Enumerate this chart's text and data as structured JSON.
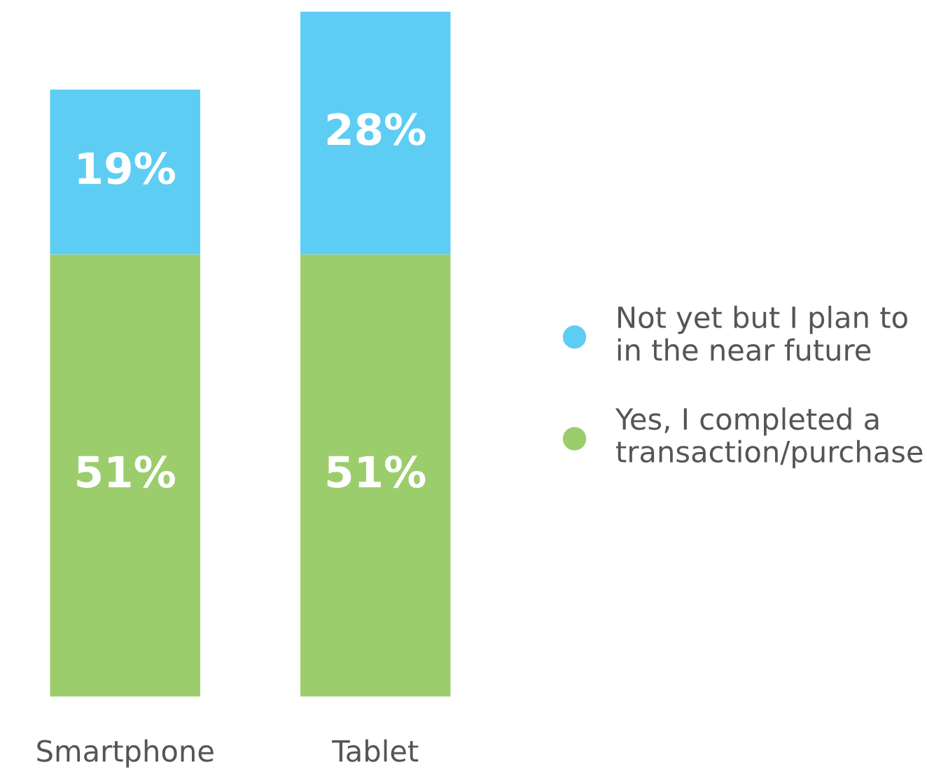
{
  "chart_data": {
    "type": "bar",
    "stacked": true,
    "legend": "right",
    "marker": "circle",
    "categories": [
      "Smartphone",
      "Tablet"
    ],
    "series": [
      {
        "name": "Yes, I completed a\ntransaction/purchase",
        "color": "#9ccd6c",
        "values": [
          51,
          51
        ],
        "value_labels": [
          "51%",
          "51%"
        ]
      },
      {
        "name": "Not yet but I plan to\nin the near future",
        "color": "#5ecdf4",
        "values": [
          19,
          28
        ],
        "value_labels": [
          "19%",
          "28%"
        ]
      }
    ]
  }
}
